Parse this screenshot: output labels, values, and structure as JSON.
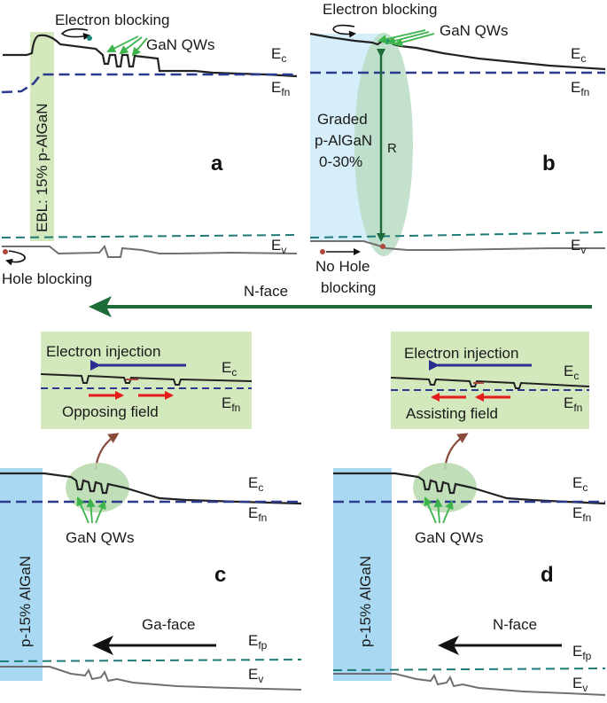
{
  "panels": {
    "a": {
      "letter": "a",
      "electron_blocking": "Electron blocking",
      "qws": "GaN QWs",
      "ec": "E",
      "ec_sub": "c",
      "efn": "E",
      "efn_sub": "fn",
      "ev": "E",
      "ev_sub": "v",
      "ebl_label": "EBL: 15% p-AlGaN",
      "hole_blocking": "Hole blocking"
    },
    "b": {
      "letter": "b",
      "electron_blocking": "Electron blocking",
      "qws": "GaN QWs",
      "ec": "E",
      "ec_sub": "c",
      "efn": "E",
      "efn_sub": "fn",
      "ev": "E",
      "ev_sub": "v",
      "graded_line1": "Graded",
      "graded_line2": "p-AlGaN",
      "graded_line3": "0-30%",
      "r_label": "R",
      "no_hole_line1": "No Hole",
      "no_hole_line2": "blocking"
    },
    "middle_arrow": {
      "label": "N-face"
    },
    "c": {
      "letter": "c",
      "inset_top": "Electron injection",
      "inset_bottom": "Opposing field",
      "qws": "GaN QWs",
      "ec": "E",
      "ec_sub": "c",
      "efn": "E",
      "efn_sub": "fn",
      "efp": "E",
      "efp_sub": "fp",
      "ev": "E",
      "ev_sub": "v",
      "layer": "p-15% AlGaN",
      "face": "Ga-face"
    },
    "d": {
      "letter": "d",
      "inset_top": "Electron injection",
      "inset_bottom": "Assisting field",
      "qws": "GaN QWs",
      "ec": "E",
      "ec_sub": "c",
      "efn": "E",
      "efn_sub": "fn",
      "efp": "E",
      "efp_sub": "fp",
      "ev": "E",
      "ev_sub": "v",
      "layer": "p-15% AlGaN",
      "face": "N-face"
    },
    "colors": {
      "band": "#222222",
      "valence": "#707070",
      "fermi_n": "#2b3a8f",
      "fermi_p": "#1f7a78",
      "green_fill": "#d4e8bd",
      "blue_fill": "#a9d9f2",
      "light_blue": "#d6eef9",
      "qw_arrow": "#3cb44b",
      "red_arrow": "#e51c1c",
      "dark_green": "#1e6b3a",
      "brown": "#8a4a3a"
    }
  }
}
